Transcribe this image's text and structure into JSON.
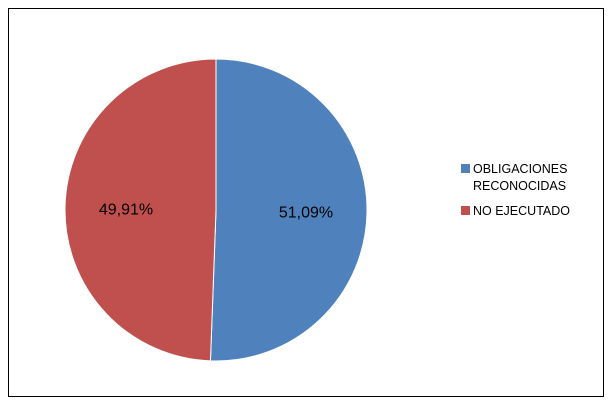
{
  "chart_data": {
    "type": "pie",
    "title": "",
    "slices": [
      {
        "label": "OBLIGACIONES\nRECONOCIDAS",
        "value": 51.09,
        "display": "51,09%",
        "color": "#4F81BD"
      },
      {
        "label": "NO EJECUTADO",
        "value": 49.91,
        "display": "49,91%",
        "color": "#C0504D"
      }
    ],
    "start_angle": "12 o'clock",
    "direction": "clockwise",
    "legend_position": "right"
  }
}
